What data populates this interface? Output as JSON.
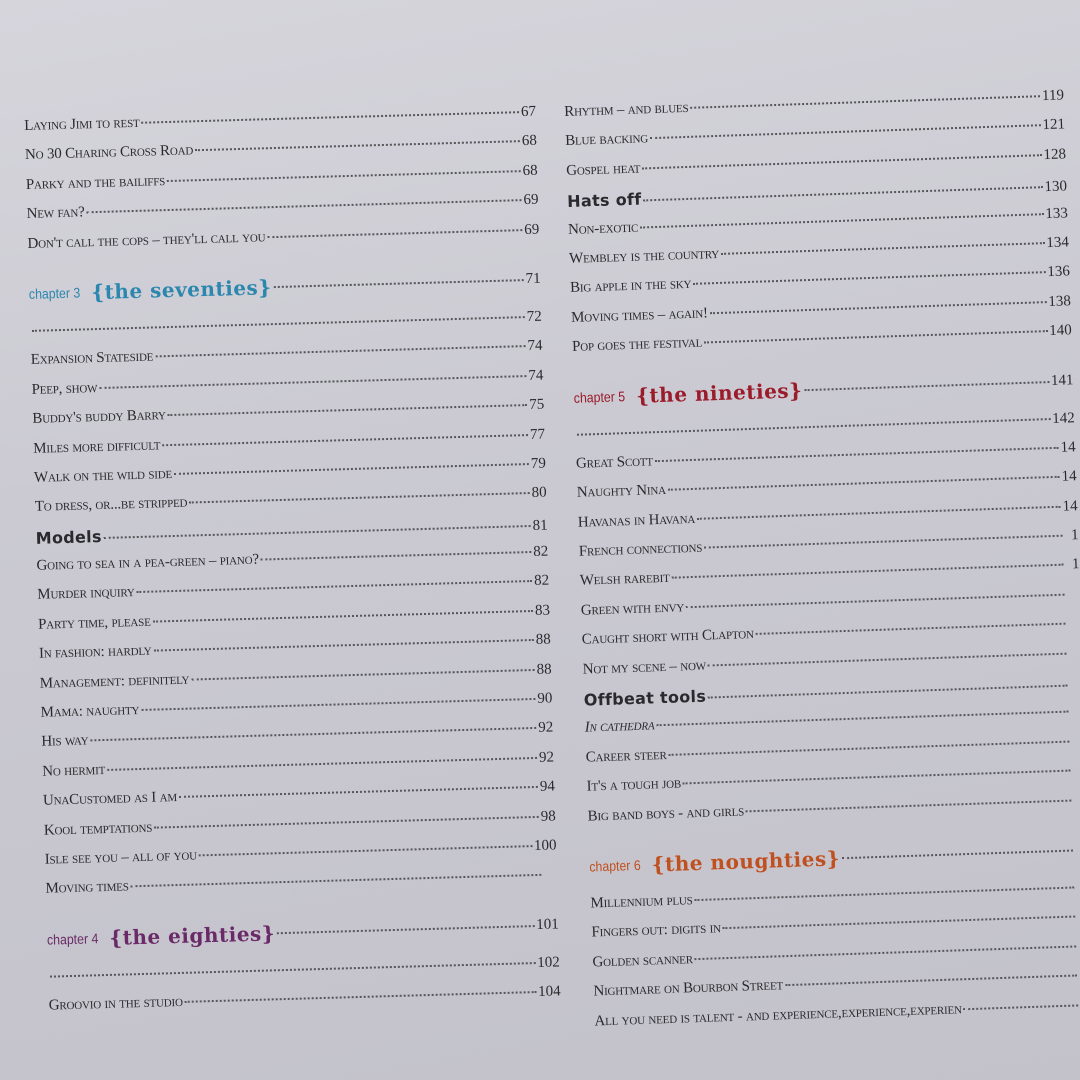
{
  "left_column": [
    {
      "text": "Laying Jimi to rest",
      "page": "67"
    },
    {
      "text": "No 30 Charing Cross Road",
      "page": "68"
    },
    {
      "text": "Parky and the bailiffs",
      "page": "68"
    },
    {
      "text": "New fan?",
      "page": "69"
    },
    {
      "text": "Don't call the cops – they'll call you",
      "page": "69"
    },
    {
      "type": "chapter",
      "label": "chapter 3",
      "title": "{the seventies}",
      "page": "71",
      "color": "#2b87ae"
    },
    {
      "text": "",
      "page": "72"
    },
    {
      "text": "Expansion Stateside",
      "page": "74"
    },
    {
      "text": "Peep, show",
      "page": "74"
    },
    {
      "text": "Buddy's buddy Barry",
      "page": "75"
    },
    {
      "text": "Miles more difficult",
      "page": "77"
    },
    {
      "text": "Walk on the wild side",
      "page": "79"
    },
    {
      "text": "To dress, or...be stripped",
      "page": "80"
    },
    {
      "type": "bold",
      "text": "Models",
      "page": "81"
    },
    {
      "text": "Going to sea in a pea-green – piano?",
      "page": "82"
    },
    {
      "text": "Murder inquiry",
      "page": "82"
    },
    {
      "text": "Party time, please",
      "page": "83"
    },
    {
      "text": "In fashion: hardly",
      "page": "88"
    },
    {
      "text": "Management: definitely",
      "page": "88"
    },
    {
      "text": "Mama: naughty",
      "page": "90"
    },
    {
      "text": "His way",
      "page": "92"
    },
    {
      "text": "No hermit",
      "page": "92"
    },
    {
      "text": "UnaCustomed as I am",
      "page": "94"
    },
    {
      "text": "Kool temptations",
      "page": "98"
    },
    {
      "text": "Isle see you – all of you",
      "page": "100"
    },
    {
      "text": "Moving times",
      "page": ""
    },
    {
      "type": "chapter",
      "label": "chapter 4",
      "title": "{the eighties}",
      "page": "101",
      "color": "#6a2a68"
    },
    {
      "text": "",
      "page": "102"
    },
    {
      "text": "Groovio in the studio",
      "page": "104"
    }
  ],
  "right_column": [
    {
      "text": "Rhythm – and blues",
      "page": "119"
    },
    {
      "text": "Blue backing",
      "page": "121"
    },
    {
      "text": "Gospel heat",
      "page": "128"
    },
    {
      "type": "bold",
      "text": "Hats off",
      "page": "130"
    },
    {
      "text": "Non-exotic",
      "page": "133"
    },
    {
      "text": "Wembley is the country",
      "page": "134"
    },
    {
      "text": "Big apple in the sky",
      "page": "136"
    },
    {
      "text": "Moving times – again!",
      "page": "138"
    },
    {
      "text": "Pop goes the festival",
      "page": "140"
    },
    {
      "type": "chapter",
      "label": "chapter 5",
      "title": "{the nineties}",
      "page": "141",
      "color": "#9a1b2a"
    },
    {
      "text": "",
      "page": "142"
    },
    {
      "text": "Great Scott",
      "page": "14"
    },
    {
      "text": "Naughty Nina",
      "page": "14"
    },
    {
      "text": "Havanas in Havana",
      "page": "14"
    },
    {
      "text": "French connections",
      "page": "1"
    },
    {
      "text": "Welsh rarebit",
      "page": "1"
    },
    {
      "text": "Green with envy",
      "page": ""
    },
    {
      "text": "Caught short with Clapton",
      "page": ""
    },
    {
      "text": "Not my scene – now",
      "page": ""
    },
    {
      "type": "bold",
      "text": "Offbeat tools",
      "page": ""
    },
    {
      "text": "In cathedra",
      "page": "",
      "italic": true
    },
    {
      "text": "Career steer",
      "page": ""
    },
    {
      "text": "It's a tough job",
      "page": ""
    },
    {
      "text": "Big band boys - and girls",
      "page": ""
    },
    {
      "type": "chapter",
      "label": "chapter 6",
      "title": "{the noughties}",
      "page": "",
      "color": "#c0501f"
    },
    {
      "text": "Millennium plus",
      "page": ""
    },
    {
      "text": "Fingers out: digits in",
      "page": ""
    },
    {
      "text": "Golden scanner",
      "page": ""
    },
    {
      "text": "Nightmare on Bourbon Street",
      "page": ""
    },
    {
      "text": "All you need is talent - and experience,experience,experien",
      "page": ""
    }
  ]
}
